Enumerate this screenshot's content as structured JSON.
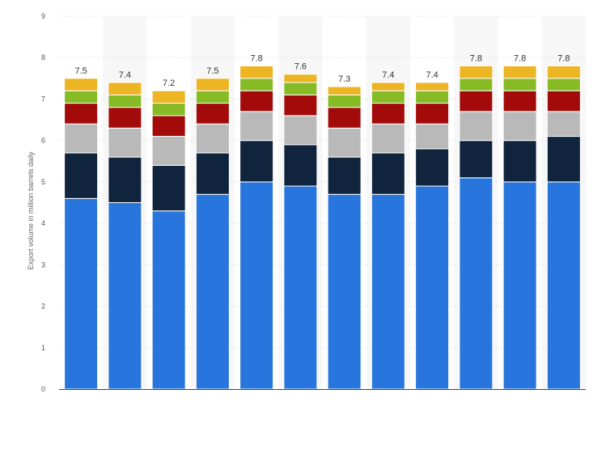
{
  "chart_data": {
    "type": "bar",
    "stacked": true,
    "title": "",
    "xlabel": "",
    "ylabel": "Export volume in million barrels daily",
    "ylim": [
      0,
      9
    ],
    "yticks": [
      0,
      1,
      2,
      3,
      4,
      5,
      6,
      7,
      8,
      9
    ],
    "grid": true,
    "legend": "none",
    "categories": [
      "",
      "",
      "",
      "",
      "",
      "",
      "",
      "",
      "",
      "",
      "",
      ""
    ],
    "series": [
      {
        "color": "#2876dd",
        "values": [
          4.6,
          4.5,
          4.3,
          4.7,
          5.0,
          4.9,
          4.7,
          4.7,
          4.9,
          5.1,
          5.0,
          5.0
        ]
      },
      {
        "color": "#10253d",
        "values": [
          1.1,
          1.1,
          1.1,
          1.0,
          1.0,
          1.0,
          0.9,
          1.0,
          0.9,
          0.9,
          1.0,
          1.1
        ]
      },
      {
        "color": "#b9b9b9",
        "values": [
          0.7,
          0.7,
          0.7,
          0.7,
          0.7,
          0.7,
          0.7,
          0.7,
          0.6,
          0.7,
          0.7,
          0.6
        ]
      },
      {
        "color": "#a30b0b",
        "values": [
          0.5,
          0.5,
          0.5,
          0.5,
          0.5,
          0.5,
          0.5,
          0.5,
          0.5,
          0.5,
          0.5,
          0.5
        ]
      },
      {
        "color": "#86bb26",
        "values": [
          0.3,
          0.3,
          0.3,
          0.3,
          0.3,
          0.3,
          0.3,
          0.3,
          0.3,
          0.3,
          0.3,
          0.3
        ]
      },
      {
        "color": "#edb423",
        "values": [
          0.3,
          0.3,
          0.3,
          0.3,
          0.3,
          0.2,
          0.2,
          0.2,
          0.2,
          0.3,
          0.3,
          0.3
        ]
      }
    ],
    "totals": [
      "7.5",
      "7.4",
      "7.2",
      "7.5",
      "7.8",
      "7.6",
      "7.3",
      "7.4",
      "7.4",
      "7.8",
      "7.8",
      "7.8"
    ]
  }
}
